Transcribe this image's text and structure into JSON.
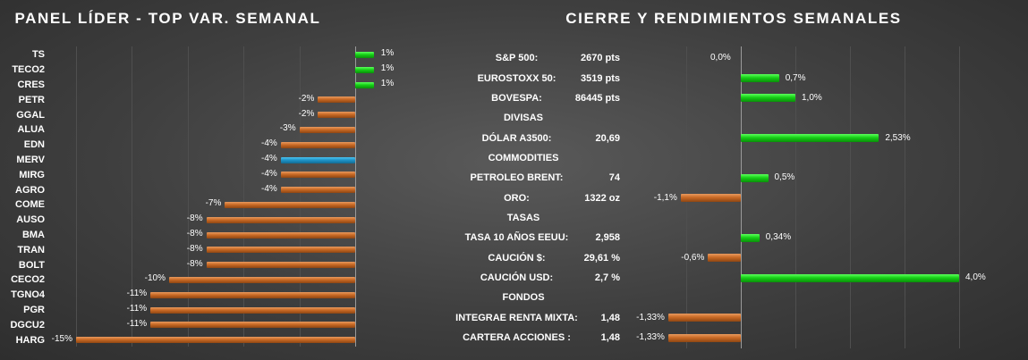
{
  "left_title": "PANEL LÍDER - TOP VAR. SEMANAL",
  "right_title": "CIERRE Y RENDIMIENTOS  SEMANALES",
  "chart_data": [
    {
      "type": "bar",
      "orientation": "horizontal",
      "title": "PANEL LÍDER - TOP VAR. SEMANAL",
      "categories": [
        "TS",
        "TECO2",
        "CRES",
        "PETR",
        "GGAL",
        "ALUA",
        "EDN",
        "MERV",
        "MIRG",
        "AGRO",
        "COME",
        "AUSO",
        "BMA",
        "TRAN",
        "BOLT",
        "CECO2",
        "TGNO4",
        "PGR",
        "DGCU2",
        "HARG"
      ],
      "values": [
        1,
        1,
        1,
        -2,
        -2,
        -3,
        -4,
        -4,
        -4,
        -4,
        -7,
        -8,
        -8,
        -8,
        -8,
        -10,
        -11,
        -11,
        -11,
        -15
      ],
      "value_labels": [
        "1%",
        "1%",
        "1%",
        "-2%",
        "-2%",
        "-3%",
        "-4%",
        "-4%",
        "-4%",
        "-4%",
        "-7%",
        "-8%",
        "-8%",
        "-8%",
        "-8%",
        "-10%",
        "-11%",
        "-11%",
        "-11%",
        "-15%"
      ],
      "highlight": "MERV",
      "xlim": [
        -15.5,
        1.5
      ],
      "colors": {
        "positive": "#16d016",
        "negative": "#c96a25",
        "highlight": "#1f95c9"
      }
    },
    {
      "type": "bar",
      "orientation": "horizontal",
      "title": "CIERRE Y RENDIMIENTOS  SEMANALES",
      "rows": [
        {
          "kind": "item",
          "label": "S&P 500:",
          "close": "2670 pts",
          "value": 0.0,
          "value_label": "0,0%"
        },
        {
          "kind": "item",
          "label": "EUROSTOXX 50:",
          "close": "3519 pts",
          "value": 0.7,
          "value_label": "0,7%"
        },
        {
          "kind": "item",
          "label": "BOVESPA:",
          "close": "86445 pts",
          "value": 1.0,
          "value_label": "1,0%"
        },
        {
          "kind": "section",
          "label": "DIVISAS"
        },
        {
          "kind": "item",
          "label": "DÓLAR A3500:",
          "close": "20,69",
          "value": 2.53,
          "value_label": "2,53%"
        },
        {
          "kind": "section",
          "label": "COMMODITIES"
        },
        {
          "kind": "item",
          "label": "PETROLEO BRENT:",
          "close": "74",
          "value": 0.5,
          "value_label": "0,5%"
        },
        {
          "kind": "item",
          "label": "ORO:",
          "close": "1322 oz",
          "value": -1.1,
          "value_label": "-1,1%"
        },
        {
          "kind": "section",
          "label": "TASAS"
        },
        {
          "kind": "item",
          "label": "TASA 10 AÑOS EEUU:",
          "close": "2,958",
          "value": 0.34,
          "value_label": "0,34%"
        },
        {
          "kind": "item",
          "label": "CAUCIÓN $:",
          "close": "29,61 %",
          "value": -0.6,
          "value_label": "-0,6%"
        },
        {
          "kind": "item",
          "label": "CAUCIÓN USD:",
          "close": "2,7 %",
          "value": 4.0,
          "value_label": "4,0%"
        },
        {
          "kind": "section",
          "label": "FONDOS"
        },
        {
          "kind": "item",
          "label": "INTEGRAE RENTA MIXTA:",
          "close": "1,48",
          "value": -1.33,
          "value_label": "-1,33%"
        },
        {
          "kind": "item",
          "label": "CARTERA ACCIONES :",
          "close": "1,48",
          "value": -1.33,
          "value_label": "-1,33%"
        }
      ],
      "colors": {
        "positive": "#16d016",
        "negative": "#c96a25"
      }
    }
  ]
}
